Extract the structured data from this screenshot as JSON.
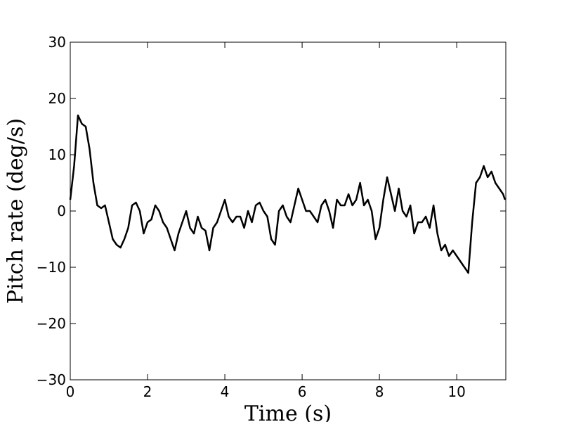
{
  "chart_data": {
    "type": "line",
    "xlabel": "Time (s)",
    "ylabel": "Pitch rate (deg/s)",
    "x": [
      0,
      0.1,
      0.2,
      0.3,
      0.4,
      0.5,
      0.6,
      0.7,
      0.8,
      0.9,
      1.0,
      1.1,
      1.2,
      1.3,
      1.4,
      1.5,
      1.6,
      1.7,
      1.8,
      1.9,
      2.0,
      2.1,
      2.2,
      2.3,
      2.4,
      2.5,
      2.6,
      2.7,
      2.8,
      2.9,
      3.0,
      3.1,
      3.2,
      3.3,
      3.4,
      3.5,
      3.6,
      3.7,
      3.8,
      3.9,
      4.0,
      4.1,
      4.2,
      4.3,
      4.4,
      4.5,
      4.6,
      4.7,
      4.8,
      4.9,
      5.0,
      5.1,
      5.2,
      5.3,
      5.4,
      5.5,
      5.6,
      5.7,
      5.8,
      5.9,
      6.0,
      6.1,
      6.2,
      6.3,
      6.4,
      6.5,
      6.6,
      6.7,
      6.8,
      6.9,
      7.0,
      7.1,
      7.2,
      7.3,
      7.4,
      7.5,
      7.6,
      7.7,
      7.8,
      7.9,
      8.0,
      8.1,
      8.2,
      8.3,
      8.4,
      8.5,
      8.6,
      8.7,
      8.8,
      8.9,
      9.0,
      9.1,
      9.2,
      9.3,
      9.4,
      9.5,
      9.6,
      9.7,
      9.8,
      9.9,
      10.0,
      10.1,
      10.2,
      10.3,
      10.4,
      10.5,
      10.6,
      10.7,
      10.8,
      10.9,
      11.0,
      11.1,
      11.2,
      11.25
    ],
    "series": [
      {
        "color": "#000000",
        "values": [
          2,
          8,
          17,
          15.5,
          15,
          11,
          5,
          1,
          0.5,
          1,
          -2,
          -5,
          -6,
          -6.5,
          -5,
          -3,
          1,
          1.5,
          0,
          -4,
          -2,
          -1.5,
          1,
          0,
          -2,
          -3,
          -5,
          -7,
          -4,
          -2,
          0,
          -3,
          -4,
          -1,
          -3,
          -3.5,
          -7,
          -3,
          -2,
          0,
          2,
          -1,
          -2,
          -1,
          -1,
          -3,
          0,
          -2,
          1,
          1.5,
          0,
          -1,
          -5,
          -6,
          0,
          1,
          -1,
          -2,
          1,
          4,
          2,
          0,
          0,
          -1,
          -2,
          1,
          2,
          0,
          -3,
          2,
          1,
          1,
          3,
          1,
          2,
          5,
          1,
          2,
          0,
          -5,
          -3,
          2,
          6,
          3,
          0,
          4,
          0,
          -1,
          1,
          -4,
          -2,
          -2,
          -1,
          -3,
          1,
          -4,
          -7,
          -6,
          -8,
          -7,
          -8,
          -9,
          -10,
          -11,
          -2,
          5,
          6,
          8,
          6,
          7,
          5,
          4,
          3,
          2
        ]
      }
    ],
    "xlim": [
      0,
      11.27
    ],
    "ylim": [
      -30,
      30
    ],
    "xticks": [
      0,
      2,
      4,
      6,
      8,
      10
    ],
    "yticks": [
      {
        "value": -30,
        "label": "−30"
      },
      {
        "value": -20,
        "label": "−20"
      },
      {
        "value": -10,
        "label": "−10"
      },
      0,
      10,
      20,
      30
    ]
  }
}
